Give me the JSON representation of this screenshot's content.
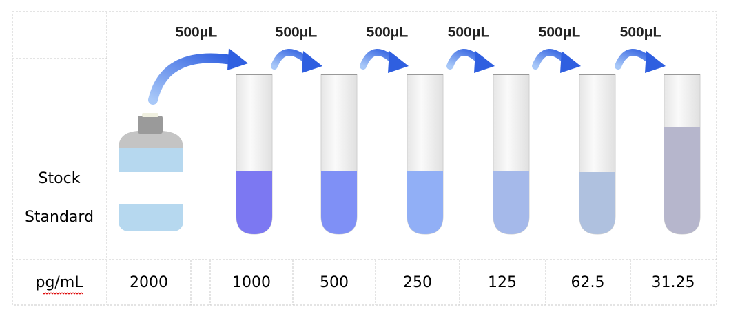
{
  "transfer_labels": [
    "500μL",
    "500μL",
    "500μL",
    "500μL",
    "500μL",
    "500μL"
  ],
  "row_header": {
    "line1": "Stock",
    "line2": "Standard"
  },
  "units_label": "pg/mL",
  "concentrations": [
    "2000",
    "1000",
    "500",
    "250",
    "125",
    "62.5",
    "31.25"
  ]
}
